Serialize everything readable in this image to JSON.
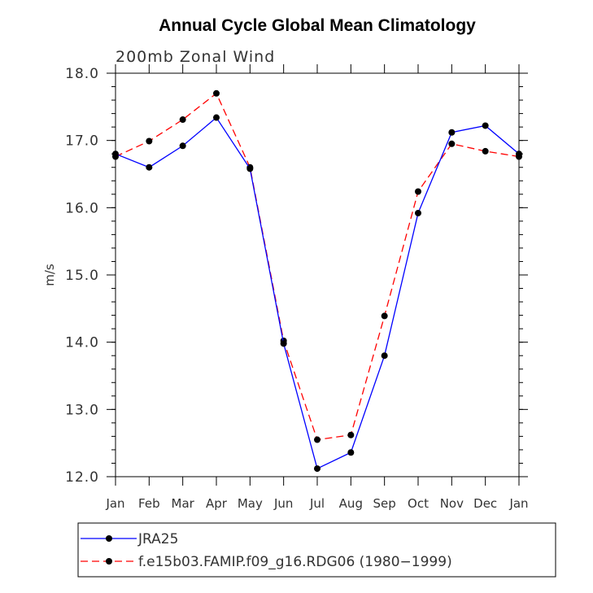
{
  "chart_data": {
    "type": "line",
    "title": "Annual Cycle Global Mean Climatology",
    "subtitle": "200mb Zonal Wind",
    "ylabel": "m/s",
    "xlabel": "",
    "categories": [
      "Jan",
      "Feb",
      "Mar",
      "Apr",
      "May",
      "Jun",
      "Jul",
      "Aug",
      "Sep",
      "Oct",
      "Nov",
      "Dec",
      "Jan"
    ],
    "ylim": [
      12.0,
      18.0
    ],
    "yticks": [
      "12.0",
      "13.0",
      "14.0",
      "15.0",
      "16.0",
      "17.0",
      "18.0"
    ],
    "series": [
      {
        "name": "JRA25",
        "color": "#0000ff",
        "dash": "solid",
        "values": [
          16.8,
          16.6,
          16.92,
          17.34,
          16.58,
          13.98,
          12.12,
          12.36,
          13.8,
          15.92,
          17.12,
          17.22,
          16.8
        ]
      },
      {
        "name": "f.e15b03.FAMIP.f09_g16.RDG06 (1980−1999)",
        "color": "#ff0000",
        "dash": "dashed",
        "values": [
          16.76,
          16.99,
          17.31,
          17.7,
          16.6,
          14.02,
          12.55,
          12.62,
          14.39,
          16.24,
          16.95,
          16.84,
          16.76
        ]
      }
    ],
    "grid": false,
    "legend_position": "bottom"
  }
}
